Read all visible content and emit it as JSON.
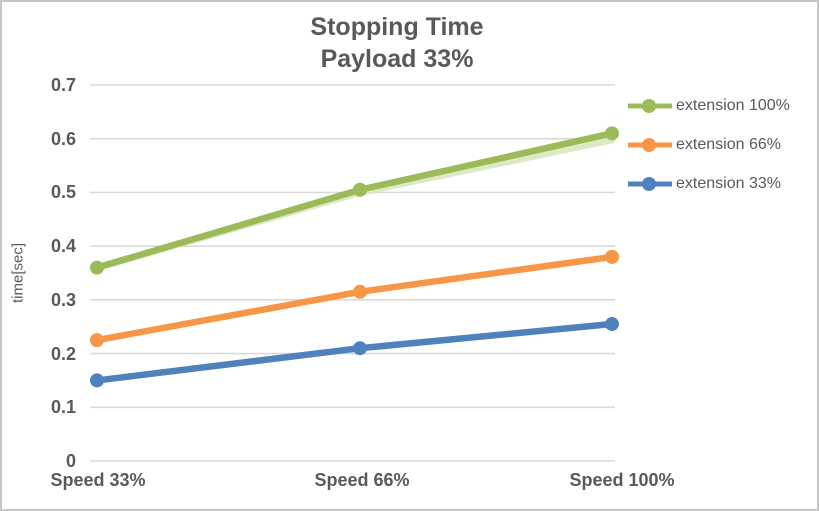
{
  "chart_data": {
    "type": "line",
    "title": "Stopping Time",
    "subtitle": "Payload 33%",
    "ylabel": "time[sec]",
    "xlabel": "",
    "categories": [
      "Speed 33%",
      "Speed 66%",
      "Speed 100%"
    ],
    "ylim": [
      0,
      0.7
    ],
    "ytick_labels": [
      "0.7",
      "0.6",
      "0.5",
      "0.4",
      "0.3",
      "0.2",
      "0.1",
      "0"
    ],
    "grid": true,
    "legend_position": "right",
    "series": [
      {
        "name": "extension 100%",
        "color": "#9BBB59",
        "values": [
          0.36,
          0.505,
          0.61
        ]
      },
      {
        "name": "extension 66%",
        "color": "#F79646",
        "values": [
          0.225,
          0.315,
          0.38
        ]
      },
      {
        "name": "extension 33%",
        "color": "#4F81BD",
        "values": [
          0.15,
          0.21,
          0.255
        ]
      }
    ],
    "shadow_series": {
      "of": "extension 100%",
      "color": "#D9E5BE",
      "values": [
        0.36,
        0.5,
        0.598
      ]
    },
    "colors": {
      "text": "#595959",
      "gridline": "#D9D9D9",
      "frame_border": "#C6C6C6",
      "background": "#FFFFFF"
    }
  }
}
